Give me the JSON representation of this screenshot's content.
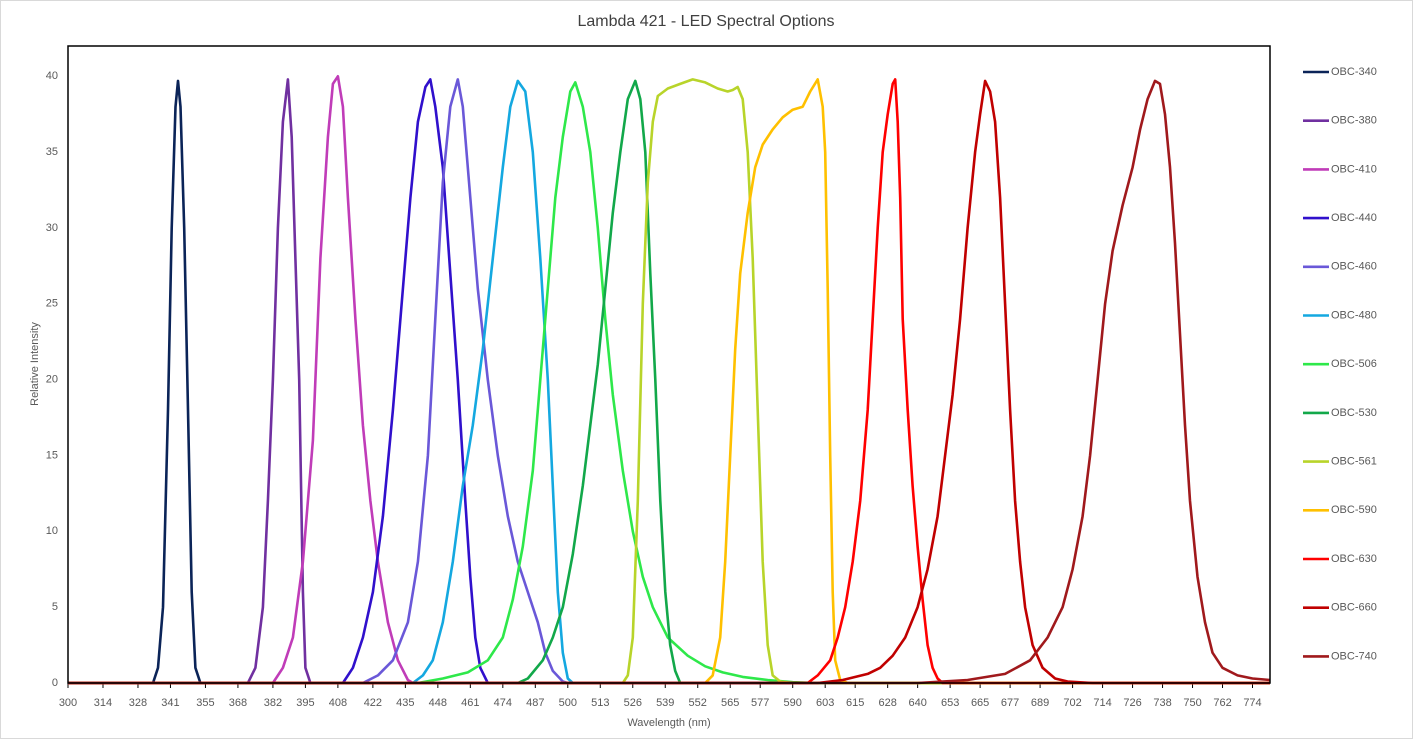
{
  "chart_data": {
    "type": "line",
    "title": "Lambda 421 - LED Spectral Options",
    "x_label": "Wavelength (nm)",
    "y_label": "Relative Intensity",
    "xlim": [
      300,
      781
    ],
    "ylim": [
      0,
      42
    ],
    "xticks": [
      300,
      314,
      328,
      341,
      355,
      368,
      382,
      395,
      408,
      422,
      435,
      448,
      461,
      474,
      487,
      500,
      513,
      526,
      539,
      552,
      565,
      577,
      590,
      603,
      615,
      628,
      640,
      653,
      665,
      677,
      689,
      702,
      714,
      726,
      738,
      750,
      762,
      774
    ],
    "yticks": [
      0,
      5,
      10,
      15,
      20,
      25,
      30,
      35,
      40
    ],
    "grid": false,
    "legend_position": "right",
    "series": [
      {
        "name": "OBC-340",
        "color": "#0b2458",
        "x": [
          300,
          334,
          336,
          338,
          340,
          341.5,
          343,
          344,
          345,
          346.5,
          348,
          349.5,
          351,
          353,
          781
        ],
        "values": [
          0,
          0,
          1,
          5,
          18,
          30,
          38,
          39.7,
          38,
          30,
          18,
          6,
          1,
          0,
          0
        ]
      },
      {
        "name": "OBC-380",
        "color": "#7030a0",
        "x": [
          300,
          372,
          375,
          378,
          380,
          382,
          384,
          386,
          388,
          389.5,
          391,
          392.5,
          394,
          395,
          397,
          781
        ],
        "values": [
          0,
          0,
          1,
          5,
          12,
          20,
          30,
          37,
          39.8,
          36,
          28,
          20,
          6,
          1,
          0,
          0
        ]
      },
      {
        "name": "OBC-410",
        "color": "#c03cb8",
        "x": [
          300,
          382,
          386,
          390,
          394,
          398,
          401,
          404,
          406,
          408,
          410,
          412,
          415,
          418,
          421,
          424,
          428,
          432,
          436,
          438,
          781
        ],
        "values": [
          0,
          0,
          1,
          3,
          8,
          16,
          28,
          36,
          39.5,
          40,
          38,
          32,
          24,
          17,
          12,
          8,
          4,
          1.5,
          0.2,
          0,
          0
        ]
      },
      {
        "name": "OBC-440",
        "color": "#3010cc",
        "x": [
          300,
          410,
          414,
          418,
          422,
          426,
          430,
          434,
          437,
          440,
          443,
          445,
          447,
          450,
          453,
          456,
          459,
          461,
          463,
          465,
          468,
          781
        ],
        "values": [
          0,
          0,
          1,
          3,
          6,
          11,
          18,
          26,
          32,
          37,
          39.3,
          39.8,
          38,
          34,
          27,
          20,
          12,
          7,
          3,
          1,
          0,
          0
        ]
      },
      {
        "name": "OBC-460",
        "color": "#6a58d8",
        "x": [
          300,
          418,
          424,
          430,
          436,
          440,
          444,
          447,
          450,
          453,
          456,
          458,
          461,
          464,
          468,
          472,
          476,
          480,
          484,
          488,
          491,
          494,
          498,
          500,
          781
        ],
        "values": [
          0,
          0,
          0.5,
          1.5,
          4,
          8,
          15,
          24,
          33,
          38,
          39.8,
          38,
          32,
          26,
          20,
          15,
          11,
          8,
          6,
          4,
          2,
          0.8,
          0.1,
          0,
          0
        ]
      },
      {
        "name": "OBC-480",
        "color": "#14a8e0",
        "x": [
          300,
          438,
          442,
          446,
          450,
          454,
          458,
          462,
          466,
          470,
          474,
          477,
          480,
          483,
          486,
          489,
          492,
          494,
          496,
          498,
          500,
          502,
          781
        ],
        "values": [
          0,
          0,
          0.5,
          1.5,
          4,
          8,
          13,
          17,
          22,
          28,
          34,
          38,
          39.7,
          39,
          35,
          28,
          20,
          13,
          6,
          2,
          0.3,
          0,
          0
        ]
      },
      {
        "name": "OBC-506",
        "color": "#2ee84a",
        "x": [
          300,
          440,
          450,
          460,
          468,
          474,
          478,
          482,
          486,
          489,
          492,
          495,
          498,
          501,
          503,
          506,
          509,
          512,
          515,
          518,
          522,
          526,
          530,
          534,
          540,
          548,
          555,
          562,
          570,
          580,
          590,
          600,
          781
        ],
        "values": [
          0,
          0,
          0.3,
          0.7,
          1.5,
          3,
          5.5,
          9,
          14,
          20,
          26,
          32,
          36,
          39,
          39.6,
          38,
          35,
          30,
          24,
          19,
          14,
          10,
          7,
          5,
          3,
          1.8,
          1.1,
          0.7,
          0.4,
          0.2,
          0.05,
          0,
          0
        ]
      },
      {
        "name": "OBC-530",
        "color": "#12a84a",
        "x": [
          300,
          480,
          484,
          490,
          494,
          498,
          502,
          506,
          509,
          512,
          515,
          518,
          521,
          524,
          527,
          529,
          531,
          533,
          535,
          537,
          539,
          541,
          543,
          545,
          781
        ],
        "values": [
          0,
          0,
          0.3,
          1.5,
          3,
          5,
          8.5,
          13,
          17,
          21,
          26,
          31,
          35,
          38.5,
          39.7,
          38.5,
          35,
          27,
          20,
          12,
          6,
          2.5,
          0.8,
          0,
          0
        ]
      },
      {
        "name": "OBC-561",
        "color": "#b8d42a",
        "x": [
          300,
          522,
          524,
          526,
          528,
          530,
          532,
          534,
          536,
          540,
          545,
          550,
          555,
          560,
          564,
          566,
          568,
          570,
          572,
          574,
          576,
          578,
          580,
          582,
          585,
          590,
          781
        ],
        "values": [
          0,
          0,
          0.5,
          3,
          12,
          25,
          33,
          37,
          38.7,
          39.2,
          39.5,
          39.8,
          39.6,
          39.2,
          39,
          39.1,
          39.3,
          38.5,
          35,
          28,
          18,
          8,
          2.5,
          0.5,
          0.1,
          0,
          0
        ]
      },
      {
        "name": "OBC-590",
        "color": "#ffc000",
        "x": [
          300,
          555,
          558,
          561,
          563,
          565,
          567,
          569,
          572,
          575,
          578,
          582,
          586,
          590,
          594,
          597,
          600,
          602,
          603,
          604,
          605,
          606,
          607,
          609,
          612,
          781
        ],
        "values": [
          0,
          0,
          0.5,
          3,
          8,
          15,
          22,
          27,
          31,
          34,
          35.5,
          36.5,
          37.3,
          37.8,
          38,
          39,
          39.8,
          38,
          35,
          26,
          15,
          6,
          1.5,
          0.2,
          0,
          0
        ]
      },
      {
        "name": "OBC-630",
        "color": "#ff0000",
        "x": [
          300,
          596,
          600,
          605,
          608,
          611,
          614,
          617,
          620,
          622,
          624,
          626,
          628,
          630,
          631,
          632,
          633,
          634,
          636,
          638,
          640,
          642,
          644,
          646,
          648,
          650,
          781
        ],
        "values": [
          0,
          0,
          0.5,
          1.5,
          3,
          5,
          8,
          12,
          18,
          24,
          30,
          35,
          37.5,
          39.5,
          39.8,
          37,
          32,
          24,
          18,
          13,
          9,
          5.5,
          2.5,
          1,
          0.3,
          0,
          0
        ]
      },
      {
        "name": "OBC-660",
        "color": "#c00000",
        "x": [
          300,
          600,
          610,
          620,
          625,
          630,
          635,
          640,
          644,
          648,
          651,
          654,
          657,
          660,
          663,
          665,
          667,
          669,
          671,
          673,
          675,
          677,
          679,
          681,
          683,
          686,
          690,
          695,
          700,
          710,
          781
        ],
        "values": [
          0,
          0,
          0.2,
          0.6,
          1,
          1.8,
          3,
          5,
          7.5,
          11,
          15,
          19,
          24,
          30,
          35,
          37.5,
          39.7,
          39,
          37,
          32,
          25,
          18,
          12,
          8,
          5,
          2.5,
          1,
          0.3,
          0.1,
          0,
          0
        ]
      },
      {
        "name": "OBC-740",
        "color": "#a0191c",
        "x": [
          300,
          640,
          660,
          675,
          685,
          692,
          698,
          702,
          706,
          709,
          712,
          715,
          718,
          722,
          726,
          729,
          732,
          735,
          737,
          739,
          741,
          743,
          745,
          747,
          749,
          752,
          755,
          758,
          762,
          768,
          774,
          781
        ],
        "values": [
          0,
          0,
          0.2,
          0.6,
          1.5,
          3,
          5,
          7.5,
          11,
          15,
          20,
          25,
          28.5,
          31.5,
          34,
          36.5,
          38.5,
          39.7,
          39.5,
          37.5,
          34,
          29,
          23,
          17,
          12,
          7,
          4,
          2,
          1,
          0.5,
          0.3,
          0.2
        ]
      }
    ]
  }
}
